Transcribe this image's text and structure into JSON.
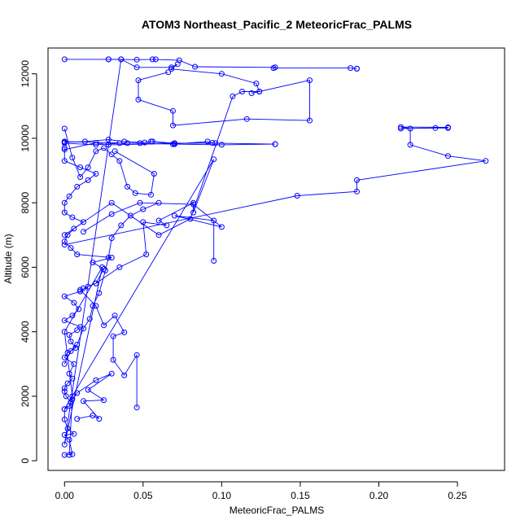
{
  "chart_data": {
    "type": "line",
    "title": "ATOM3 Northeast_Pacific_2 MeteoricFrac_PALMS",
    "xlabel": "MeteoricFrac_PALMS",
    "ylabel": "Altitude (m)",
    "xlim": [
      -0.0105,
      0.28
    ],
    "ylim": [
      -300,
      12800
    ],
    "xticks": [
      0.0,
      0.05,
      0.1,
      0.15,
      0.2,
      0.25
    ],
    "xtick_labels": [
      "0.00",
      "0.05",
      "0.10",
      "0.15",
      "0.20",
      "0.25"
    ],
    "yticks": [
      0,
      2000,
      4000,
      6000,
      8000,
      10000,
      12000
    ],
    "ytick_labels": [
      "0",
      "2000",
      "4000",
      "6000",
      "8000",
      "10000",
      "12000"
    ],
    "grid": false,
    "marker": "open-circle",
    "color": "#0000ff",
    "series": [
      {
        "x": [
          0.0,
          0.005,
          0.003,
          0.0,
          0.006,
          0.002,
          0.0,
          0.0,
          0.003,
          0.004,
          0.001,
          0.0,
          0.0,
          0.002,
          0.005,
          0.003,
          0.006,
          0.0,
          0.002,
          0.007,
          0.004,
          0.003,
          0.008,
          0.01,
          0.0,
          0.005,
          0.009,
          0.006,
          0.0,
          0.01,
          0.015,
          0.012,
          0.02,
          0.025,
          0.018,
          0.03,
          0.008,
          0.004,
          0.0,
          0.002,
          0.006,
          0.012,
          0.005,
          0.0,
          0.0,
          0.003,
          0.008,
          0.015,
          0.02,
          0.01,
          0.0,
          0.0
        ],
        "y": [
          180,
          200,
          650,
          800,
          830,
          1000,
          1280,
          1600,
          1700,
          1820,
          2000,
          2150,
          2250,
          2400,
          2550,
          2700,
          3000,
          3200,
          3350,
          3500,
          3700,
          3900,
          4050,
          4150,
          4350,
          4500,
          4700,
          4900,
          5100,
          5250,
          5400,
          5350,
          5500,
          5950,
          6150,
          6300,
          6400,
          6600,
          6800,
          7000,
          7200,
          7400,
          7550,
          7700,
          8000,
          8200,
          8500,
          8700,
          8900,
          9100,
          9300,
          9700
        ]
      },
      {
        "x": [
          0.008,
          0.018,
          0.022,
          0.012,
          0.025,
          0.015,
          0.03,
          0.02,
          0.008,
          0.005
        ],
        "y": [
          1300,
          1400,
          1300,
          1850,
          1880,
          2200,
          2700,
          2500,
          2100,
          1900
        ]
      },
      {
        "x": [
          0.046,
          0.046,
          0.038,
          0.031,
          0.031,
          0.038,
          0.032,
          0.025,
          0.02,
          0.01
        ],
        "y": [
          1650,
          3280,
          2650,
          3130,
          3860,
          3980,
          4500,
          4200,
          4800,
          5300
        ]
      },
      {
        "x": [
          0.0,
          0.095,
          0.082,
          0.082,
          0.06,
          0.065,
          0.05,
          0.052,
          0.035,
          0.02
        ],
        "y": [
          1600,
          9350,
          7700,
          8000,
          7450,
          7300,
          7400,
          6400,
          6000,
          5500
        ]
      },
      {
        "x": [
          0.095,
          0.095,
          0.07,
          0.1,
          0.082,
          0.048,
          0.03,
          0.012
        ],
        "y": [
          6200,
          7450,
          7600,
          7250,
          7950,
          8000,
          7650,
          7100
        ]
      },
      {
        "x": [
          0.0,
          0.148,
          0.186,
          0.186,
          0.268,
          0.244,
          0.22,
          0.22,
          0.214,
          0.244,
          0.244,
          0.236,
          0.214
        ],
        "y": [
          6700,
          8220,
          8350,
          8700,
          9300,
          9450,
          9800,
          10300,
          10350,
          10340,
          10320,
          10320,
          10300
        ]
      },
      {
        "x": [
          0.0,
          0.02,
          0.035,
          0.048,
          0.056,
          0.07,
          0.096,
          0.134,
          0.134,
          0.1,
          0.07,
          0.04,
          0.0
        ],
        "y": [
          9850,
          9800,
          9850,
          9850,
          9900,
          9850,
          9850,
          9820,
          9820,
          9800,
          9820,
          9850,
          9900
        ]
      },
      {
        "x": [
          0.0,
          0.013,
          0.028,
          0.038,
          0.051,
          0.055,
          0.069,
          0.091,
          0.094,
          0.028,
          0.02,
          0.0
        ],
        "y": [
          9880,
          9900,
          9960,
          9900,
          9870,
          9900,
          9820,
          9900,
          9860,
          9800,
          9860,
          9650
        ]
      },
      {
        "x": [
          0.0,
          0.028,
          0.046,
          0.058,
          0.056,
          0.073,
          0.083,
          0.134,
          0.133,
          0.182,
          0.186,
          0.186
        ],
        "y": [
          12450,
          12450,
          12440,
          12450,
          12450,
          12420,
          12220,
          12200,
          12180,
          12180,
          12160,
          12160
        ]
      },
      {
        "x": [
          0.028,
          0.036,
          0.046,
          0.068,
          0.072,
          0.068,
          0.1,
          0.122,
          0.124,
          0.156,
          0.156,
          0.116,
          0.069,
          0.069,
          0.047,
          0.047,
          0.066
        ],
        "y": [
          12450,
          12450,
          12200,
          12200,
          12300,
          12150,
          12000,
          11700,
          11450,
          11800,
          10550,
          10600,
          10400,
          10850,
          11200,
          11800,
          12050
        ]
      },
      {
        "x": [
          0.036,
          0.0,
          0.024,
          0.0,
          0.005,
          0.003
        ],
        "y": [
          12450,
          500,
          6000,
          4000,
          2000,
          180
        ]
      },
      {
        "x": [
          0.0,
          0.03,
          0.06,
          0.08,
          0.107,
          0.113,
          0.124,
          0.119
        ],
        "y": [
          7000,
          8000,
          7000,
          7500,
          11300,
          11450,
          11450,
          11400
        ]
      },
      {
        "x": [
          0.0,
          0.005,
          0.01,
          0.015,
          0.02,
          0.025,
          0.03,
          0.035,
          0.04,
          0.045,
          0.055,
          0.057,
          0.032
        ],
        "y": [
          10300,
          9400,
          8800,
          9100,
          9600,
          9700,
          9500,
          9300,
          8500,
          8300,
          8250,
          8900,
          9600
        ]
      },
      {
        "x": [
          0.0,
          0.004,
          0.008,
          0.012,
          0.016,
          0.018,
          0.022,
          0.026,
          0.028,
          0.03,
          0.036,
          0.042,
          0.05,
          0.06
        ],
        "y": [
          3000,
          3400,
          3600,
          4100,
          4400,
          4800,
          5200,
          5900,
          6300,
          6900,
          7300,
          7600,
          7800,
          8000
        ]
      }
    ]
  }
}
